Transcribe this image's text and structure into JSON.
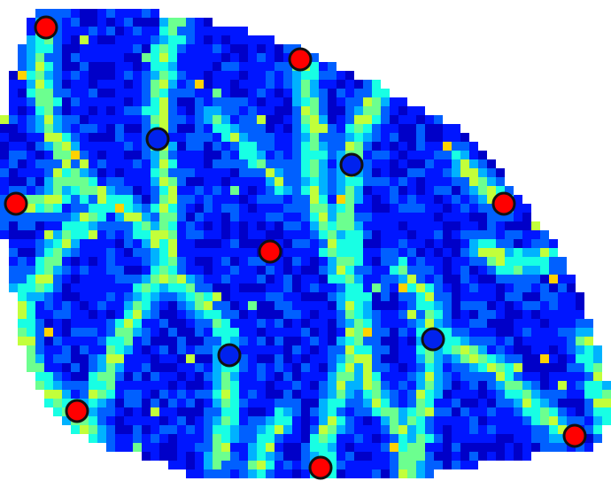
{
  "colors": {
    "background": "#ffffff",
    "colormap": [
      "#00007f",
      "#0000c8",
      "#0016ff",
      "#0060ff",
      "#00b2ff",
      "#18ffe4",
      "#6cff8f",
      "#c2ff3a",
      "#ffd200",
      "#ff7a00"
    ],
    "red_marker": "#ff0000",
    "blue_marker": "#0022ee",
    "marker_outline": "#111111"
  },
  "markers": [
    {
      "type": "red",
      "label": ""
    },
    {
      "type": "red",
      "label": ""
    },
    {
      "type": "red",
      "label": ""
    },
    {
      "type": "red",
      "label": ""
    },
    {
      "type": "red",
      "label": ""
    },
    {
      "type": "red",
      "label": ""
    },
    {
      "type": "red",
      "label": ""
    },
    {
      "type": "red",
      "label": ""
    },
    {
      "type": "blue",
      "label": ""
    },
    {
      "type": "blue",
      "label": ""
    },
    {
      "type": "blue",
      "label": ""
    },
    {
      "type": "blue",
      "label": ""
    }
  ]
}
